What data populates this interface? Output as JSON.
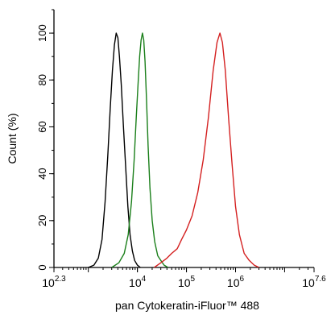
{
  "chart_data": {
    "type": "line",
    "xlabel": "pan Cytokeratin-iFluor™ 488",
    "ylabel": "Count (%)",
    "x_scale": "log",
    "xlim": [
      199.5,
      39810717
    ],
    "ylim": [
      0,
      110
    ],
    "grid": false,
    "legend": "none",
    "y_ticks": [
      0,
      20,
      40,
      60,
      80,
      100
    ],
    "x_ticks": [
      {
        "base": "10",
        "exp": "2.3",
        "value": 199.5
      },
      {
        "base": "10",
        "exp": "4",
        "value": 10000
      },
      {
        "base": "10",
        "exp": "5",
        "value": 100000
      },
      {
        "base": "10",
        "exp": "6",
        "value": 1000000
      },
      {
        "base": "10",
        "exp": "7.6",
        "value": 39810717
      }
    ],
    "series": [
      {
        "color": "#000000",
        "x": [
          1000,
          1300,
          1600,
          1900,
          2200,
          2500,
          2800,
          3100,
          3400,
          3700,
          4000,
          4300,
          4700,
          5200,
          5800,
          6400,
          7100,
          7900,
          8800,
          10000,
          11500
        ],
        "y": [
          0,
          1,
          4,
          12,
          28,
          48,
          68,
          84,
          95,
          100,
          98,
          90,
          78,
          60,
          42,
          26,
          14,
          7,
          3,
          1,
          0
        ]
      },
      {
        "color": "#1a7f1a",
        "x": [
          3000,
          4200,
          5400,
          6500,
          7600,
          8600,
          9500,
          10300,
          11100,
          11900,
          12700,
          13500,
          14300,
          15300,
          16500,
          18000,
          20000,
          22500,
          26000,
          30000,
          35000,
          42000
        ],
        "y": [
          0,
          2,
          6,
          14,
          28,
          46,
          64,
          78,
          90,
          97,
          100,
          97,
          88,
          72,
          52,
          34,
          20,
          11,
          5,
          3,
          1,
          0
        ]
      },
      {
        "color": "#d42020",
        "x": [
          22000,
          30000,
          40000,
          50000,
          65000,
          80000,
          100000,
          130000,
          170000,
          220000,
          280000,
          350000,
          420000,
          480000,
          540000,
          620000,
          720000,
          850000,
          1000000,
          1200000,
          1500000,
          1900000,
          2400000,
          3000000
        ],
        "y": [
          0,
          2,
          4,
          6,
          8,
          12,
          16,
          22,
          32,
          46,
          64,
          84,
          96,
          100,
          96,
          84,
          64,
          44,
          26,
          14,
          6,
          3,
          1,
          0
        ]
      }
    ]
  }
}
